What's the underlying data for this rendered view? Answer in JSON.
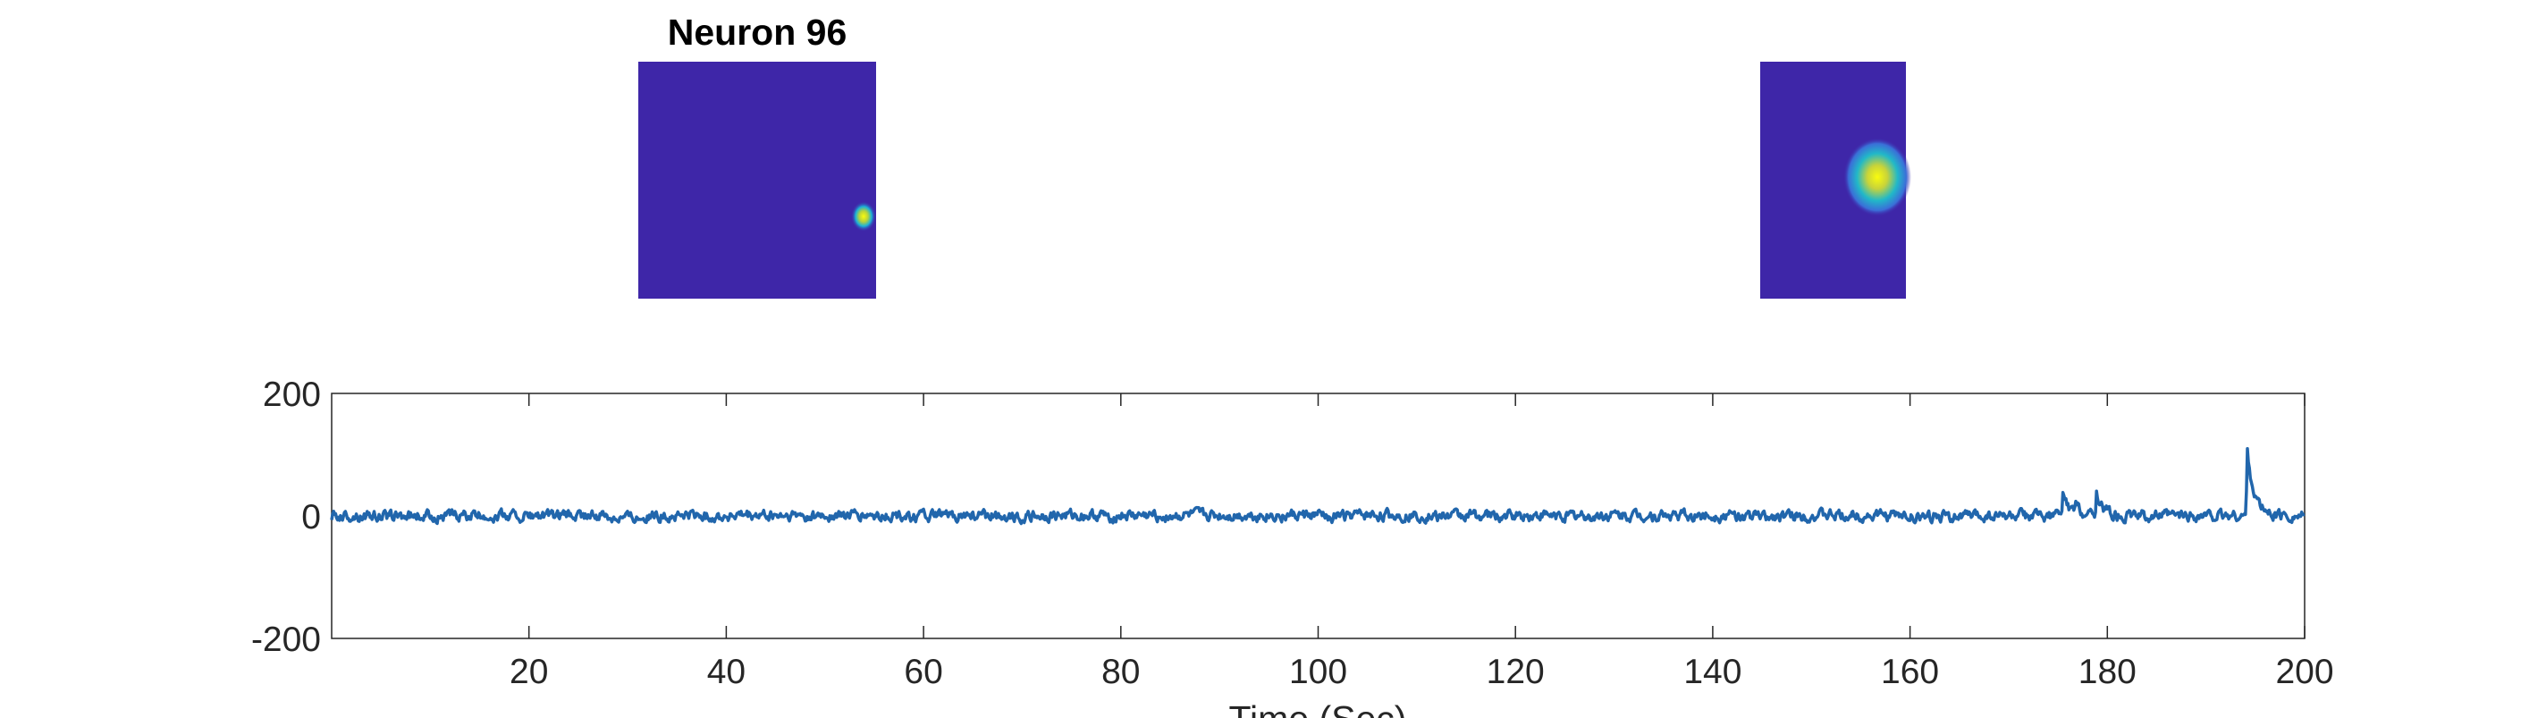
{
  "figure": {
    "neuron_title": "Neuron 96",
    "colors": {
      "map_background": "#3e26a8",
      "trace": "#2166ac",
      "trace_dark": "#1f3f7a",
      "axis": "#262626"
    },
    "images": [
      {
        "name": "neuron-footprint-map",
        "spot_color_hot": "#f9fb0e",
        "spot_color_mid": "#1ab2d9"
      },
      {
        "name": "neuron-zoom-map",
        "spot_color_hot": "#f9fb0e",
        "spot_color_mid": "#1ab2d9"
      }
    ]
  },
  "chart_data": {
    "type": "line",
    "title": "",
    "xlabel": "Time (Sec)",
    "ylabel": "",
    "xlim": [
      0,
      200
    ],
    "ylim": [
      -200,
      200
    ],
    "xticks": [
      20,
      40,
      60,
      80,
      100,
      120,
      140,
      160,
      180,
      200
    ],
    "yticks": [
      200,
      0,
      -200
    ],
    "xtick_labels": [
      "20",
      "40",
      "60",
      "80",
      "100",
      "120",
      "140",
      "160",
      "180",
      "200"
    ],
    "ytick_labels": [
      "200",
      "0",
      "-200"
    ],
    "grid": false,
    "baseline_noise_amplitude": 8,
    "peaks": [
      {
        "x": 175.5,
        "y": 35
      },
      {
        "x": 176.8,
        "y": 15
      },
      {
        "x": 178.9,
        "y": 40
      },
      {
        "x": 194.2,
        "y": 105
      }
    ]
  }
}
